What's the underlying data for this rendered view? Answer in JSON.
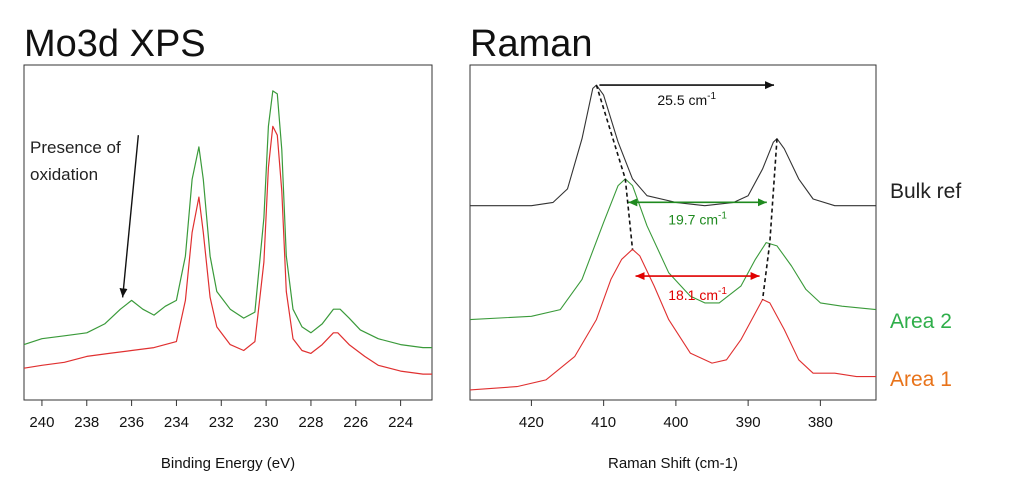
{
  "chart_data": [
    {
      "type": "line",
      "title": "Mo3d XPS",
      "xlabel": "Binding Energy (eV)",
      "ylabel": "",
      "x_reversed": true,
      "xlim": [
        240.8,
        222.6
      ],
      "x_ticks": [
        240,
        238,
        236,
        234,
        232,
        230,
        228,
        226,
        224
      ],
      "ylim": [
        0,
        1
      ],
      "grid": false,
      "annotation": {
        "text": [
          "Presence of",
          "oxidation"
        ],
        "arrow_from": [
          235.7,
          0.83
        ],
        "arrow_to": [
          236.4,
          0.28
        ]
      },
      "series": [
        {
          "color": "#3a9a3a",
          "points": [
            [
              240.8,
              0.12
            ],
            [
              240,
              0.14
            ],
            [
              239,
              0.15
            ],
            [
              238,
              0.16
            ],
            [
              237.2,
              0.19
            ],
            [
              236.5,
              0.24
            ],
            [
              236,
              0.27
            ],
            [
              235.5,
              0.24
            ],
            [
              235,
              0.22
            ],
            [
              234.5,
              0.25
            ],
            [
              234,
              0.27
            ],
            [
              233.6,
              0.42
            ],
            [
              233.3,
              0.68
            ],
            [
              233.0,
              0.79
            ],
            [
              232.8,
              0.68
            ],
            [
              232.5,
              0.42
            ],
            [
              232.2,
              0.3
            ],
            [
              231.6,
              0.24
            ],
            [
              231,
              0.21
            ],
            [
              230.5,
              0.23
            ],
            [
              230.1,
              0.55
            ],
            [
              229.9,
              0.86
            ],
            [
              229.7,
              0.98
            ],
            [
              229.5,
              0.97
            ],
            [
              229.3,
              0.78
            ],
            [
              229.1,
              0.42
            ],
            [
              228.8,
              0.24
            ],
            [
              228.4,
              0.18
            ],
            [
              228,
              0.16
            ],
            [
              227.5,
              0.19
            ],
            [
              227,
              0.24
            ],
            [
              226.7,
              0.24
            ],
            [
              226.3,
              0.21
            ],
            [
              225.8,
              0.17
            ],
            [
              225,
              0.14
            ],
            [
              224,
              0.12
            ],
            [
              223,
              0.11
            ],
            [
              222.6,
              0.11
            ]
          ]
        },
        {
          "color": "#e03030",
          "points": [
            [
              240.8,
              0.04
            ],
            [
              240,
              0.05
            ],
            [
              239,
              0.06
            ],
            [
              238,
              0.08
            ],
            [
              237,
              0.09
            ],
            [
              236,
              0.1
            ],
            [
              235,
              0.11
            ],
            [
              234,
              0.13
            ],
            [
              233.6,
              0.27
            ],
            [
              233.3,
              0.5
            ],
            [
              233.0,
              0.62
            ],
            [
              232.8,
              0.5
            ],
            [
              232.5,
              0.28
            ],
            [
              232.2,
              0.18
            ],
            [
              231.6,
              0.12
            ],
            [
              231,
              0.1
            ],
            [
              230.5,
              0.13
            ],
            [
              230.1,
              0.4
            ],
            [
              229.9,
              0.72
            ],
            [
              229.7,
              0.86
            ],
            [
              229.5,
              0.83
            ],
            [
              229.3,
              0.64
            ],
            [
              229.1,
              0.3
            ],
            [
              228.8,
              0.14
            ],
            [
              228.4,
              0.1
            ],
            [
              228,
              0.09
            ],
            [
              227.5,
              0.12
            ],
            [
              227,
              0.16
            ],
            [
              226.8,
              0.16
            ],
            [
              226.3,
              0.12
            ],
            [
              225.6,
              0.08
            ],
            [
              225,
              0.05
            ],
            [
              224,
              0.03
            ],
            [
              223,
              0.02
            ],
            [
              222.6,
              0.02
            ]
          ]
        }
      ]
    },
    {
      "type": "line",
      "title": "Raman",
      "xlabel": "Raman Shift (cm-1)",
      "ylabel": "",
      "x_reversed": true,
      "xlim": [
        428.5,
        372.3
      ],
      "x_ticks": [
        420,
        410,
        400,
        390,
        380
      ],
      "ylim": [
        0,
        1
      ],
      "grid": false,
      "series": [
        {
          "name": "Bulk ref",
          "color": "#333333",
          "points": [
            [
              428.5,
              0.58
            ],
            [
              420,
              0.58
            ],
            [
              417,
              0.59
            ],
            [
              415,
              0.63
            ],
            [
              413,
              0.78
            ],
            [
              411.5,
              0.93
            ],
            [
              411,
              0.94
            ],
            [
              410,
              0.91
            ],
            [
              408,
              0.77
            ],
            [
              406,
              0.66
            ],
            [
              404,
              0.61
            ],
            [
              400,
              0.59
            ],
            [
              396,
              0.58
            ],
            [
              392,
              0.59
            ],
            [
              390,
              0.61
            ],
            [
              388,
              0.69
            ],
            [
              386.5,
              0.77
            ],
            [
              386,
              0.78
            ],
            [
              385,
              0.75
            ],
            [
              383,
              0.66
            ],
            [
              381,
              0.6
            ],
            [
              378,
              0.58
            ],
            [
              372.3,
              0.58
            ]
          ]
        },
        {
          "name": "Area 2",
          "color": "#3a9a3a",
          "points": [
            [
              428.5,
              0.24
            ],
            [
              420,
              0.25
            ],
            [
              416,
              0.27
            ],
            [
              413,
              0.36
            ],
            [
              410,
              0.53
            ],
            [
              408,
              0.64
            ],
            [
              407,
              0.66
            ],
            [
              406,
              0.64
            ],
            [
              404,
              0.52
            ],
            [
              401,
              0.38
            ],
            [
              398,
              0.31
            ],
            [
              396,
              0.29
            ],
            [
              394,
              0.29
            ],
            [
              391,
              0.34
            ],
            [
              389,
              0.42
            ],
            [
              387.5,
              0.47
            ],
            [
              386,
              0.46
            ],
            [
              384,
              0.4
            ],
            [
              382,
              0.33
            ],
            [
              380,
              0.29
            ],
            [
              377,
              0.28
            ],
            [
              372.3,
              0.27
            ]
          ]
        },
        {
          "name": "Area 1",
          "color": "#e03030",
          "points": [
            [
              428.5,
              0.03
            ],
            [
              422,
              0.04
            ],
            [
              418,
              0.06
            ],
            [
              414,
              0.13
            ],
            [
              411,
              0.24
            ],
            [
              409,
              0.36
            ],
            [
              407.5,
              0.42
            ],
            [
              406,
              0.45
            ],
            [
              405,
              0.43
            ],
            [
              403,
              0.34
            ],
            [
              401,
              0.24
            ],
            [
              398,
              0.14
            ],
            [
              395,
              0.11
            ],
            [
              393,
              0.12
            ],
            [
              391,
              0.18
            ],
            [
              389,
              0.26
            ],
            [
              388,
              0.3
            ],
            [
              387,
              0.29
            ],
            [
              385,
              0.21
            ],
            [
              383,
              0.12
            ],
            [
              381,
              0.08
            ],
            [
              378,
              0.08
            ],
            [
              375,
              0.07
            ],
            [
              372.3,
              0.07
            ]
          ]
        }
      ],
      "annotations": [
        {
          "label": "25.5 cm-1",
          "base": "25.5 cm",
          "sup": "-1",
          "color": "#111111",
          "x1": 411,
          "x2": 386,
          "y": 0.94
        },
        {
          "label": "19.7 cm-1",
          "base": "19.7 cm",
          "sup": "-1",
          "color": "#1f8a1f",
          "x1": 407,
          "x2": 387,
          "y": 0.59
        },
        {
          "label": "18.1  cm-1",
          "base": "18.1  cm",
          "sup": "-1",
          "color": "#e00000",
          "x1": 406,
          "x2": 388,
          "y": 0.37
        }
      ],
      "guides": [
        [
          [
            411,
            0.94
          ],
          [
            407,
            0.66
          ],
          [
            406,
            0.45
          ]
        ],
        [
          [
            386,
            0.78
          ],
          [
            387,
            0.47
          ],
          [
            388,
            0.3
          ]
        ]
      ],
      "legend": [
        {
          "text": "Bulk ref",
          "color": "#222222"
        },
        {
          "text": "Area 2",
          "color": "#2fae4a"
        },
        {
          "text": "Area 1",
          "color": "#e8731a"
        }
      ]
    }
  ]
}
